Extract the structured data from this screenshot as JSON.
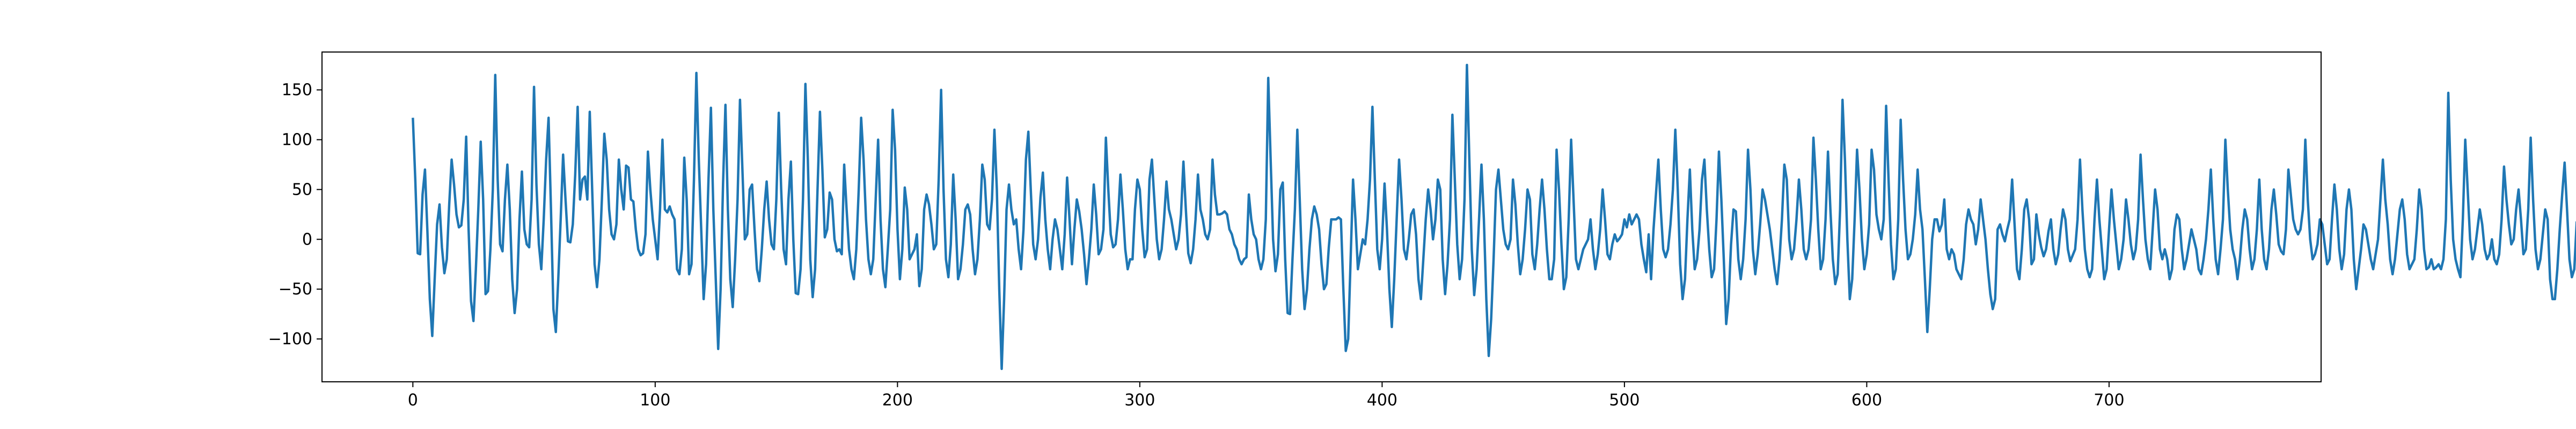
{
  "chart_data": {
    "type": "line",
    "title": "",
    "xlabel": "",
    "ylabel": "",
    "xlim": [
      -37.5,
      787.5
    ],
    "ylim": [
      -143,
      188
    ],
    "x_ticks": [
      0,
      100,
      200,
      300,
      400,
      500,
      600,
      700
    ],
    "y_ticks": [
      -100,
      -50,
      0,
      50,
      100,
      150
    ],
    "grid": false,
    "legend": "none",
    "series": [
      {
        "color": "#1f77b4",
        "x_start": 0,
        "x_step": 1,
        "values": [
          122,
          60,
          -14,
          -15,
          45,
          70,
          8,
          -60,
          -97,
          -40,
          15,
          35,
          -8,
          -34,
          -20,
          35,
          80,
          55,
          25,
          12,
          14,
          40,
          103,
          10,
          -62,
          -82,
          -30,
          30,
          98,
          40,
          -55,
          -52,
          -10,
          50,
          165,
          60,
          -5,
          -12,
          40,
          75,
          30,
          -40,
          -74,
          -50,
          20,
          68,
          10,
          -5,
          -8,
          40,
          153,
          55,
          -5,
          -30,
          20,
          80,
          122,
          30,
          -70,
          -93,
          -40,
          20,
          85,
          40,
          -2,
          -3,
          15,
          65,
          133,
          40,
          60,
          63,
          40,
          128,
          50,
          -25,
          -48,
          -20,
          40,
          106,
          80,
          30,
          5,
          0,
          15,
          80,
          50,
          30,
          74,
          72,
          40,
          38,
          10,
          -10,
          -16,
          -14,
          5,
          88,
          50,
          20,
          0,
          -20,
          30,
          100,
          30,
          27,
          33,
          25,
          20,
          -30,
          -35,
          -10,
          82,
          40,
          -35,
          -25,
          60,
          167,
          80,
          10,
          -60,
          -25,
          60,
          132,
          30,
          -40,
          -110,
          -50,
          55,
          135,
          30,
          -40,
          -68,
          -20,
          40,
          140,
          70,
          0,
          5,
          50,
          55,
          10,
          -30,
          -42,
          -10,
          30,
          58,
          20,
          -5,
          -10,
          40,
          127,
          50,
          -10,
          -25,
          40,
          78,
          0,
          -54,
          -55,
          -30,
          40,
          156,
          80,
          -20,
          -58,
          -30,
          50,
          128,
          70,
          2,
          10,
          47,
          40,
          0,
          -12,
          -10,
          -15,
          75,
          30,
          -10,
          -30,
          -40,
          -10,
          50,
          122,
          80,
          20,
          -20,
          -35,
          -20,
          40,
          100,
          20,
          -30,
          -48,
          -10,
          30,
          130,
          90,
          10,
          -40,
          -10,
          52,
          30,
          -20,
          -15,
          -10,
          5,
          -47,
          -30,
          30,
          45,
          35,
          15,
          -10,
          -5,
          60,
          150,
          50,
          -20,
          -38,
          -5,
          65,
          20,
          -40,
          -30,
          -5,
          30,
          35,
          25,
          -10,
          -35,
          -20,
          20,
          75,
          60,
          15,
          10,
          40,
          110,
          50,
          -50,
          -130,
          -60,
          30,
          55,
          30,
          15,
          20,
          -10,
          -30,
          10,
          80,
          108,
          50,
          -5,
          -20,
          0,
          42,
          67,
          20,
          -10,
          -30,
          0,
          20,
          10,
          -10,
          -30,
          5,
          62,
          20,
          -25,
          10,
          40,
          28,
          10,
          -15,
          -45,
          -20,
          10,
          55,
          25,
          -15,
          -10,
          10,
          102,
          50,
          5,
          -8,
          -5,
          20,
          65,
          30,
          -10,
          -30,
          -20,
          -20,
          30,
          60,
          50,
          10,
          -18,
          -10,
          60,
          80,
          40,
          0,
          -20,
          -10,
          20,
          58,
          30,
          20,
          5,
          -10,
          0,
          25,
          78,
          30,
          -14,
          -24,
          -10,
          20,
          65,
          30,
          20,
          5,
          0,
          10,
          80,
          45,
          25,
          25,
          26,
          28,
          25,
          10,
          5,
          -5,
          -10,
          -20,
          -25,
          -20,
          -18,
          45,
          20,
          5,
          0,
          -20,
          -30,
          -20,
          20,
          162,
          80,
          0,
          -32,
          -15,
          50,
          57,
          -20,
          -74,
          -75,
          -20,
          30,
          110,
          40,
          -30,
          -70,
          -50,
          -10,
          20,
          33,
          25,
          10,
          -25,
          -50,
          -45,
          -8,
          20,
          20,
          20,
          22,
          20,
          -50,
          -112,
          -100,
          -20,
          60,
          20,
          -30,
          -15,
          0,
          -5,
          20,
          60,
          133,
          60,
          -10,
          -30,
          0,
          56,
          10,
          -50,
          -88,
          -40,
          20,
          80,
          40,
          -10,
          -20,
          0,
          25,
          30,
          5,
          -40,
          -60,
          -20,
          20,
          50,
          30,
          0,
          20,
          60,
          50,
          -20,
          -55,
          -25,
          20,
          125,
          60,
          -5,
          -40,
          -20,
          40,
          175,
          80,
          -10,
          -56,
          -30,
          20,
          75,
          20,
          -60,
          -117,
          -80,
          -20,
          50,
          70,
          40,
          10,
          -5,
          -10,
          0,
          60,
          35,
          -5,
          -35,
          -20,
          10,
          50,
          40,
          -15,
          -30,
          -5,
          30,
          60,
          30,
          -10,
          -40,
          -40,
          -20,
          90,
          50,
          -5,
          -50,
          -38,
          20,
          100,
          40,
          -20,
          -30,
          -20,
          -10,
          -5,
          0,
          20,
          -10,
          -30,
          -15,
          10,
          50,
          20,
          -15,
          -20,
          -5,
          5,
          -2,
          1,
          5,
          20,
          12,
          25,
          15,
          20,
          25,
          20,
          -5,
          -20,
          -33,
          5,
          -40,
          10,
          45,
          80,
          30,
          -10,
          -18,
          -10,
          15,
          50,
          110,
          50,
          -25,
          -60,
          -40,
          20,
          70,
          10,
          -30,
          -20,
          10,
          60,
          80,
          30,
          -10,
          -38,
          -30,
          20,
          88,
          40,
          -20,
          -85,
          -60,
          -5,
          30,
          28,
          -20,
          -40,
          -20,
          20,
          90,
          50,
          -10,
          -35,
          -15,
          15,
          50,
          40,
          25,
          10,
          -10,
          -30,
          -45,
          -20,
          20,
          75,
          60,
          0,
          -20,
          -10,
          20,
          60,
          30,
          -10,
          -20,
          -10,
          20,
          102,
          60,
          10,
          -30,
          -20,
          20,
          88,
          30,
          -20,
          -45,
          -35,
          30,
          140,
          80,
          0,
          -60,
          -40,
          20,
          90,
          50,
          0,
          -30,
          -15,
          15,
          90,
          70,
          25,
          10,
          0,
          20,
          134,
          60,
          -5,
          -40,
          -30,
          20,
          120,
          60,
          10,
          -20,
          -15,
          0,
          25,
          70,
          30,
          10,
          -40,
          -93,
          -50,
          0,
          20,
          20,
          8,
          15,
          40,
          -10,
          -20,
          -10,
          -15,
          -30,
          -35,
          -40,
          -20,
          15,
          30,
          20,
          15,
          -5,
          10,
          40,
          20,
          0,
          -30,
          -55,
          -70,
          -60,
          10,
          15,
          5,
          -2,
          10,
          20,
          60,
          15,
          -30,
          -40,
          -10,
          30,
          40,
          20,
          -25,
          -20,
          25,
          5,
          -8,
          -17,
          -10,
          8,
          20,
          -10,
          -25,
          -15,
          10,
          30,
          20,
          -10,
          -22,
          -16,
          -10,
          20,
          80,
          30,
          -10,
          -30,
          -38,
          -30,
          20,
          60,
          20,
          -10,
          -40,
          -30,
          10,
          50,
          20,
          -5,
          -30,
          -20,
          0,
          40,
          20,
          -5,
          -20,
          -10,
          20,
          85,
          40,
          0,
          -20,
          -30,
          10,
          50,
          30,
          -10,
          -20,
          -10,
          -20,
          -40,
          -30,
          10,
          25,
          20,
          -10,
          -30,
          -20,
          -5,
          10,
          0,
          -10,
          -30,
          -35,
          -20,
          0,
          30,
          70,
          20,
          -20,
          -35,
          -10,
          20,
          100,
          50,
          10,
          -10,
          -20,
          -40,
          -20,
          10,
          30,
          20,
          -10,
          -30,
          -20,
          10,
          60,
          10,
          -20,
          -30,
          -10,
          30,
          50,
          25,
          -5,
          -12,
          -15,
          10,
          70,
          45,
          20,
          10,
          5,
          10,
          30,
          100,
          40,
          0,
          -20,
          -15,
          -5,
          20,
          15,
          -5,
          -25,
          -20,
          20,
          55,
          30,
          -10,
          -30,
          -15,
          30,
          50,
          30,
          -20,
          -50,
          -30,
          -10,
          15,
          10,
          -5,
          -20,
          -30,
          -15,
          0,
          40,
          80,
          40,
          15,
          -20,
          -35,
          -20,
          5,
          30,
          40,
          20,
          -15,
          -30,
          -25,
          -20,
          10,
          50,
          30,
          -10,
          -30,
          -28,
          -20,
          -30,
          -28,
          -25,
          -30,
          -20,
          20,
          147,
          60,
          0,
          -20,
          -30,
          -38,
          20,
          100,
          50,
          0,
          -20,
          -10,
          10,
          30,
          15,
          -10,
          -20,
          -15,
          0,
          -20,
          -25,
          -15,
          20,
          73,
          40,
          15,
          -5,
          0,
          30,
          50,
          20,
          -15,
          -10,
          30,
          102,
          40,
          -10,
          -30,
          -20,
          5,
          30,
          20,
          -40,
          -60,
          -60,
          -30,
          10,
          45,
          77,
          30,
          -20,
          -38,
          -30,
          18
        ]
      }
    ]
  }
}
